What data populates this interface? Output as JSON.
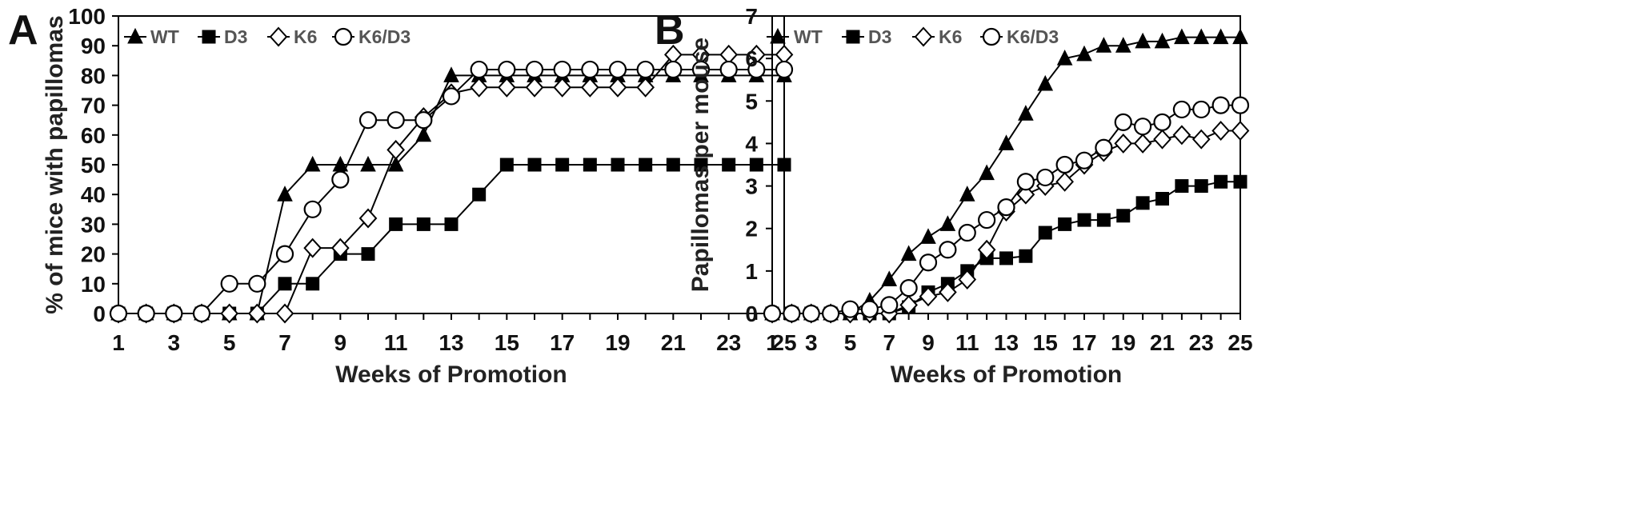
{
  "panels": [
    {
      "letter": "A",
      "chart_data": {
        "type": "line",
        "xlabel": "Weeks of Promotion",
        "ylabel": "% of mice with papillomas",
        "xlim": [
          1,
          25
        ],
        "ylim": [
          0,
          100
        ],
        "xticks": [
          1,
          3,
          5,
          7,
          9,
          11,
          13,
          15,
          17,
          19,
          21,
          23,
          25
        ],
        "yticks": [
          0,
          10,
          20,
          30,
          40,
          50,
          60,
          70,
          80,
          90,
          100
        ],
        "grid": false,
        "legend_position": "top-left",
        "series": [
          {
            "name": "WT",
            "marker": "triangle-filled",
            "x": [
              1,
              2,
              3,
              4,
              5,
              6,
              7,
              8,
              9,
              10,
              11,
              12,
              13,
              14,
              15,
              16,
              17,
              18,
              19,
              20,
              21,
              22,
              23,
              24,
              25
            ],
            "values": [
              0,
              0,
              0,
              0,
              0,
              0,
              40,
              50,
              50,
              50,
              50,
              60,
              80,
              80,
              80,
              80,
              80,
              80,
              80,
              80,
              80,
              80,
              80,
              80,
              80
            ]
          },
          {
            "name": "D3",
            "marker": "square-filled",
            "x": [
              1,
              2,
              3,
              4,
              5,
              6,
              7,
              8,
              9,
              10,
              11,
              12,
              13,
              14,
              15,
              16,
              17,
              18,
              19,
              20,
              21,
              22,
              23,
              24,
              25
            ],
            "values": [
              0,
              0,
              0,
              0,
              0,
              0,
              10,
              10,
              20,
              20,
              30,
              30,
              30,
              40,
              50,
              50,
              50,
              50,
              50,
              50,
              50,
              50,
              50,
              50,
              50
            ]
          },
          {
            "name": "K6",
            "marker": "diamond-open",
            "x": [
              1,
              2,
              3,
              4,
              5,
              6,
              7,
              8,
              9,
              10,
              11,
              12,
              13,
              14,
              15,
              16,
              17,
              18,
              19,
              20,
              21,
              22,
              23,
              24,
              25
            ],
            "values": [
              0,
              0,
              0,
              0,
              0,
              0,
              0,
              22,
              22,
              32,
              55,
              66,
              74,
              76,
              76,
              76,
              76,
              76,
              76,
              76,
              87,
              87,
              87,
              87,
              87
            ]
          },
          {
            "name": "K6/D3",
            "marker": "circle-open",
            "x": [
              1,
              2,
              3,
              4,
              5,
              6,
              7,
              8,
              9,
              10,
              11,
              12,
              13,
              14,
              15,
              16,
              17,
              18,
              19,
              20,
              21,
              22,
              23,
              24,
              25
            ],
            "values": [
              0,
              0,
              0,
              0,
              10,
              10,
              20,
              35,
              45,
              65,
              65,
              65,
              73,
              82,
              82,
              82,
              82,
              82,
              82,
              82,
              82,
              82,
              82,
              82,
              82
            ]
          }
        ]
      }
    },
    {
      "letter": "B",
      "chart_data": {
        "type": "line",
        "xlabel": "Weeks of Promotion",
        "ylabel": "Papillomas per mouse",
        "xlim": [
          1,
          25
        ],
        "ylim": [
          0,
          7
        ],
        "xticks": [
          1,
          3,
          5,
          7,
          9,
          11,
          13,
          15,
          17,
          19,
          21,
          23,
          25
        ],
        "yticks": [
          0,
          1,
          2,
          3,
          4,
          5,
          6,
          7
        ],
        "grid": false,
        "legend_position": "top-left",
        "series": [
          {
            "name": "WT",
            "marker": "triangle-filled",
            "x": [
              1,
              2,
              3,
              4,
              5,
              6,
              7,
              8,
              9,
              10,
              11,
              12,
              13,
              14,
              15,
              16,
              17,
              18,
              19,
              20,
              21,
              22,
              23,
              24,
              25
            ],
            "values": [
              0,
              0,
              0,
              0,
              0,
              0.3,
              0.8,
              1.4,
              1.8,
              2.1,
              2.8,
              3.3,
              4.0,
              4.7,
              5.4,
              6.0,
              6.1,
              6.3,
              6.3,
              6.4,
              6.4,
              6.5,
              6.5,
              6.5,
              6.5
            ]
          },
          {
            "name": "D3",
            "marker": "square-filled",
            "x": [
              1,
              2,
              3,
              4,
              5,
              6,
              7,
              8,
              9,
              10,
              11,
              12,
              13,
              14,
              15,
              16,
              17,
              18,
              19,
              20,
              21,
              22,
              23,
              24,
              25
            ],
            "values": [
              0,
              0,
              0,
              0,
              0,
              0,
              0,
              0.15,
              0.5,
              0.7,
              1.0,
              1.3,
              1.3,
              1.35,
              1.9,
              2.1,
              2.2,
              2.2,
              2.3,
              2.6,
              2.7,
              3.0,
              3.0,
              3.1,
              3.1
            ]
          },
          {
            "name": "K6",
            "marker": "diamond-open",
            "x": [
              1,
              2,
              3,
              4,
              5,
              6,
              7,
              8,
              9,
              10,
              11,
              12,
              13,
              14,
              15,
              16,
              17,
              18,
              19,
              20,
              21,
              22,
              23,
              24,
              25
            ],
            "values": [
              0,
              0,
              0,
              0,
              0,
              0,
              0,
              0.2,
              0.4,
              0.5,
              0.8,
              1.5,
              2.4,
              2.8,
              3.0,
              3.1,
              3.5,
              3.8,
              4.0,
              4.0,
              4.1,
              4.2,
              4.1,
              4.3,
              4.3
            ]
          },
          {
            "name": "K6/D3",
            "marker": "circle-open",
            "x": [
              1,
              2,
              3,
              4,
              5,
              6,
              7,
              8,
              9,
              10,
              11,
              12,
              13,
              14,
              15,
              16,
              17,
              18,
              19,
              20,
              21,
              22,
              23,
              24,
              25
            ],
            "values": [
              0,
              0,
              0,
              0,
              0.1,
              0.1,
              0.2,
              0.6,
              1.2,
              1.5,
              1.9,
              2.2,
              2.5,
              3.1,
              3.2,
              3.5,
              3.6,
              3.9,
              4.5,
              4.4,
              4.5,
              4.8,
              4.8,
              4.9,
              4.9
            ]
          }
        ]
      }
    }
  ]
}
